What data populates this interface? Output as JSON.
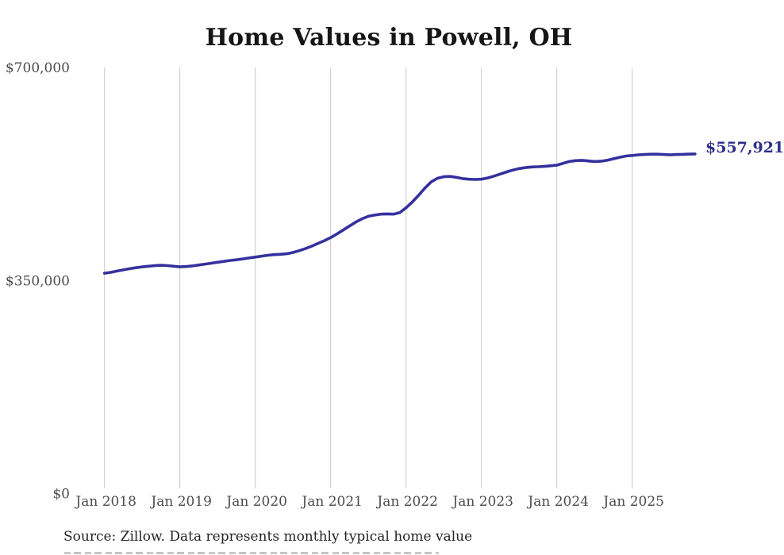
{
  "title": "Home Values in Powell, OH",
  "end_label": "$557,921",
  "source_note": "Source: Zillow. Data represents monthly typical home value",
  "colors": {
    "line": "#34319e",
    "end_label": "#2d2d88",
    "gridline": "#c9c9c9",
    "axis_text": "#4c4c4c",
    "title_text": "#151515",
    "source_text": "#242424",
    "background": "#ffffff"
  },
  "y_axis": {
    "labels": [
      "$700,000",
      "$350,000",
      "$0"
    ],
    "values": [
      700000,
      350000,
      0
    ]
  },
  "x_axis": {
    "labels": [
      "Jan 2018",
      "Jan 2019",
      "Jan 2020",
      "Jan 2021",
      "Jan 2022",
      "Jan 2023",
      "Jan 2024",
      "Jan 2025"
    ]
  },
  "chart_data": {
    "type": "line",
    "title": "Home Values in Powell, OH",
    "ylabel": "",
    "xlabel": "",
    "unit": "USD",
    "frequency": "monthly",
    "start": "2018-01",
    "end": "2025-11",
    "ylim": [
      0,
      700000
    ],
    "y_ticks": [
      0,
      350000,
      700000
    ],
    "x_tick_labels": [
      "Jan 2018",
      "Jan 2019",
      "Jan 2020",
      "Jan 2021",
      "Jan 2022",
      "Jan 2023",
      "Jan 2024",
      "Jan 2025"
    ],
    "grid": "vertical-only",
    "legend": "none",
    "final_value": 557921,
    "final_value_label": "$557,921",
    "values": [
      362000,
      363500,
      365500,
      367500,
      369500,
      371000,
      372500,
      373500,
      374500,
      375000,
      374500,
      373500,
      372500,
      373000,
      374000,
      375500,
      377000,
      378500,
      380000,
      381500,
      383000,
      384000,
      385500,
      387000,
      388500,
      390000,
      391500,
      392500,
      393000,
      394000,
      396000,
      399000,
      402500,
      406500,
      411000,
      415500,
      420500,
      426500,
      433000,
      439500,
      446000,
      451500,
      455500,
      457500,
      459000,
      459500,
      459000,
      461500,
      469500,
      479000,
      490000,
      502000,
      512000,
      518000,
      520500,
      521000,
      519500,
      517500,
      516500,
      516000,
      516500,
      518500,
      521500,
      525000,
      528500,
      531500,
      534000,
      535500,
      536500,
      537000,
      537500,
      538500,
      539500,
      542500,
      545500,
      547000,
      547500,
      546500,
      545500,
      546000,
      547500,
      550000,
      552500,
      554500,
      555500,
      556500,
      557000,
      557500,
      557500,
      557000,
      556500,
      557000,
      557300,
      557700,
      557921
    ]
  }
}
